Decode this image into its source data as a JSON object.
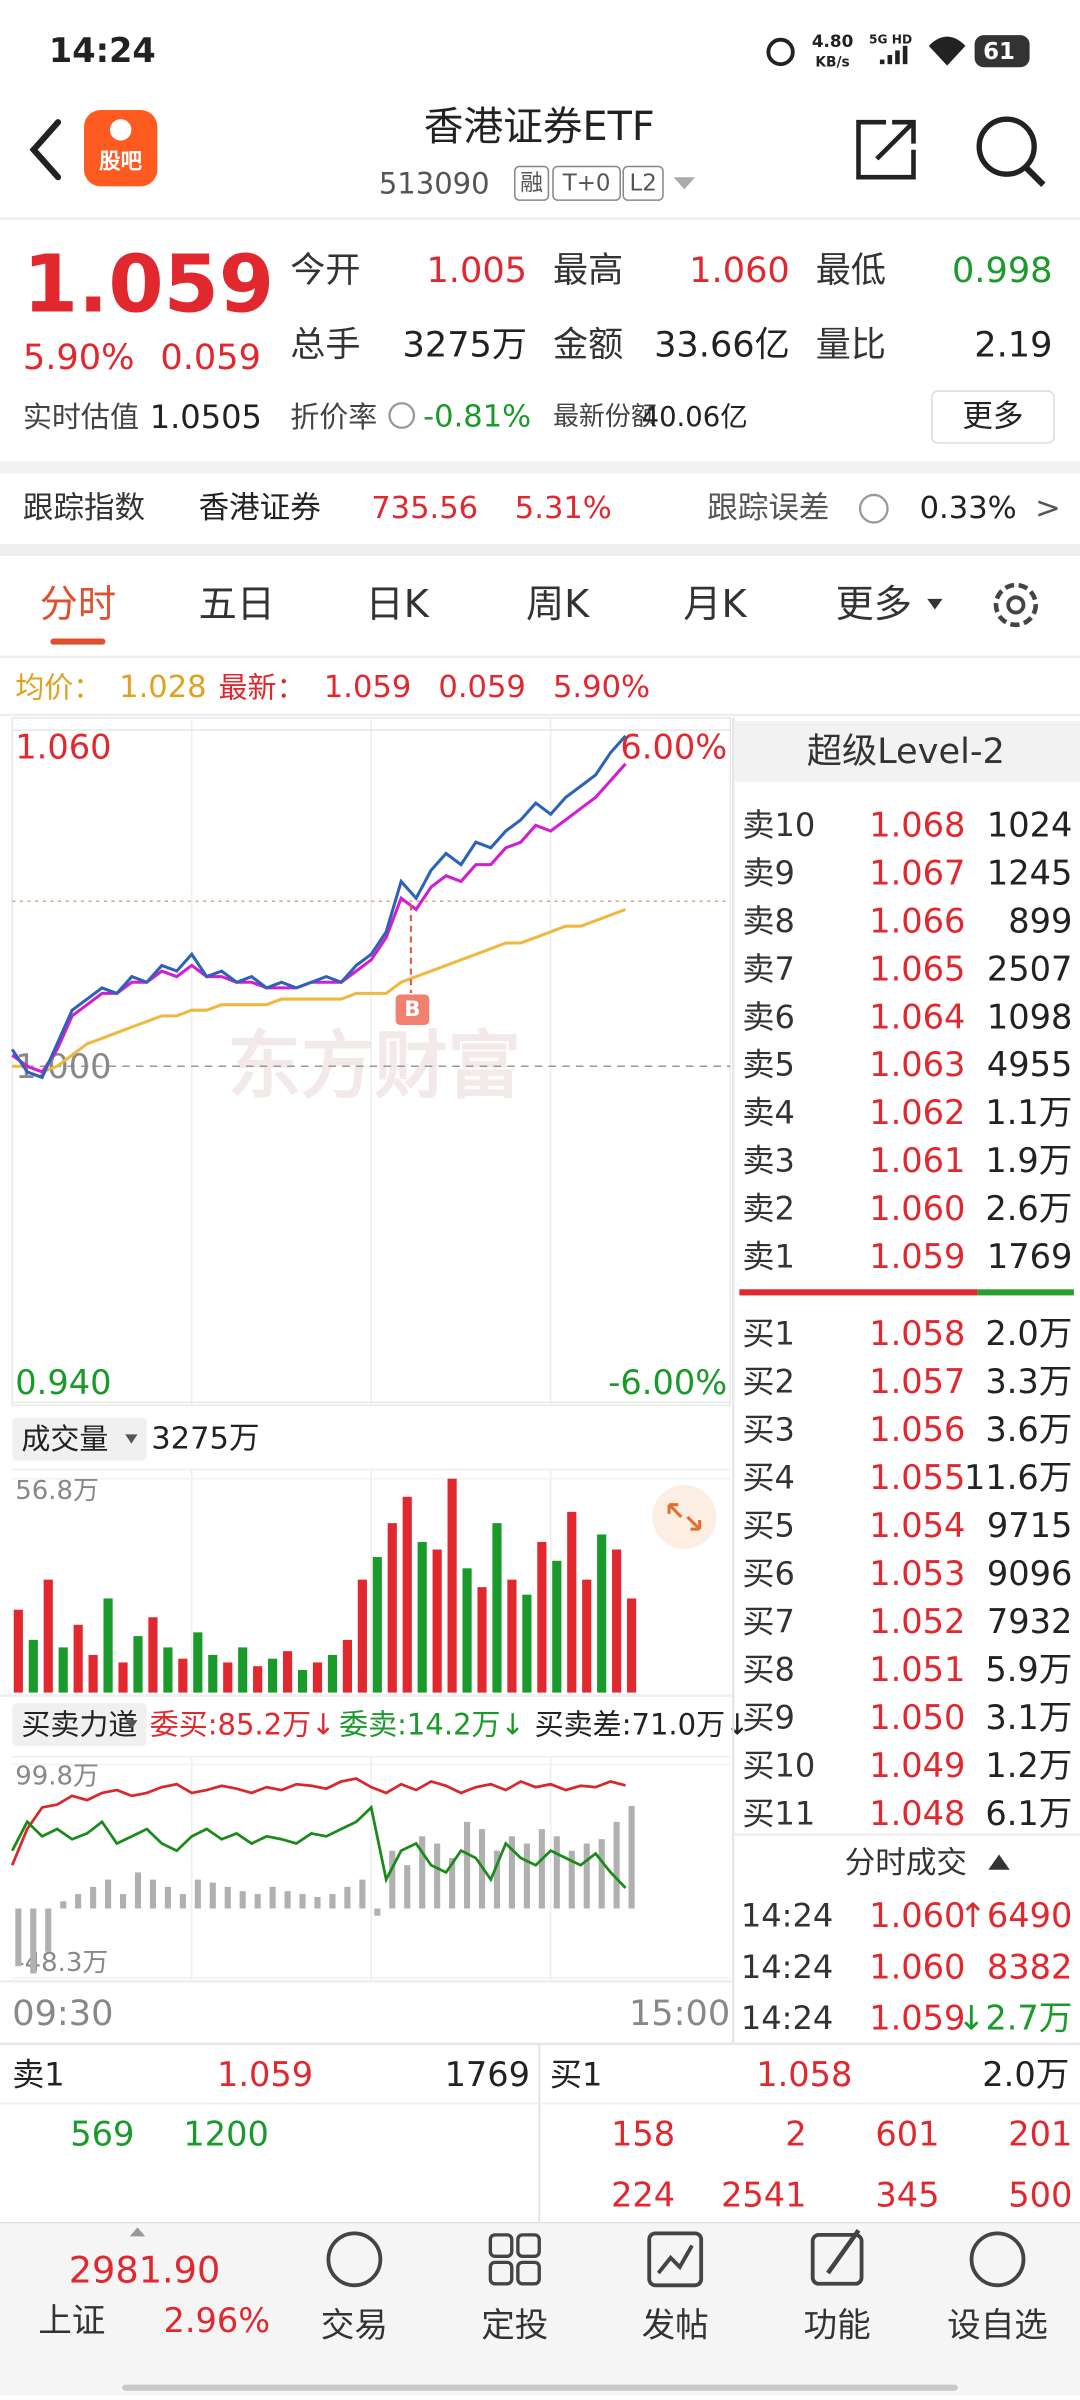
{
  "status": {
    "time": "14:24",
    "speed": "4.80",
    "speed_unit": "KB/s",
    "network": "5G HD",
    "battery": "61"
  },
  "header": {
    "app_badge": "股吧",
    "title": "香港证券ETF",
    "code": "513090",
    "tags": [
      "融",
      "T+0",
      "L2"
    ]
  },
  "quote": {
    "price": "1.059",
    "change_pct": "5.90%",
    "change": "0.059",
    "fields": [
      {
        "label": "今开",
        "value": "1.005"
      },
      {
        "label": "最高",
        "value": "1.060"
      },
      {
        "label": "最低",
        "value": "0.998"
      },
      {
        "label": "总手",
        "value": "3275万"
      },
      {
        "label": "金额",
        "value": "33.66亿"
      },
      {
        "label": "量比",
        "value": "2.19"
      }
    ],
    "estimate_label": "实时估值",
    "estimate": "1.0505",
    "discount_label": "折价率",
    "discount": "-0.81%",
    "shares_label": "最新份额",
    "shares": "40.06亿",
    "more": "更多"
  },
  "tracking": {
    "label": "跟踪指数",
    "index": "香港证券",
    "value": "735.56",
    "pct": "5.31%",
    "error_label": "跟踪误差",
    "error": "0.33%",
    "arrow": ">"
  },
  "tabs": [
    "分时",
    "五日",
    "日K",
    "周K",
    "月K",
    "更多"
  ],
  "summary": {
    "avg_label": "均价：",
    "avg": "1.028",
    "last_label": "最新：",
    "last": "1.059",
    "change": "0.059",
    "pct": "5.90%"
  },
  "chart_data": [
    {
      "type": "line",
      "ylim": [
        0.94,
        1.06
      ],
      "yticks": [
        {
          "value": 1.06,
          "label": "1.060"
        },
        {
          "value": 1.0,
          "label": "1.000"
        },
        {
          "value": 0.94,
          "label": "0.940"
        }
      ],
      "y2lim": [
        -6,
        6
      ],
      "y2ticks": [
        {
          "value": 6,
          "label": "6.00%"
        },
        {
          "value": -6,
          "label": "-6.00%"
        }
      ],
      "time_labels": [
        "09:30",
        "15:00"
      ],
      "watermark": "东方财富",
      "trade_marker": "B",
      "series": [
        {
          "color": "#2d62b8",
          "values": [
            1.003,
            0.999,
            0.998,
            1.004,
            1.01,
            1.012,
            1.014,
            1.013,
            1.016,
            1.015,
            1.018,
            1.017,
            1.02,
            1.016,
            1.017,
            1.015,
            1.016,
            1.014,
            1.015,
            1.014,
            1.015,
            1.016,
            1.015,
            1.018,
            1.02,
            1.024,
            1.033,
            1.03,
            1.035,
            1.038,
            1.036,
            1.04,
            1.039,
            1.042,
            1.044,
            1.047,
            1.045,
            1.048,
            1.05,
            1.052,
            1.056,
            1.059
          ]
        },
        {
          "color": "#d21ed2",
          "values": [
            1.002,
            1.0,
            0.999,
            1.003,
            1.009,
            1.011,
            1.013,
            1.013,
            1.015,
            1.015,
            1.017,
            1.016,
            1.018,
            1.016,
            1.016,
            1.015,
            1.015,
            1.014,
            1.014,
            1.014,
            1.015,
            1.015,
            1.015,
            1.017,
            1.019,
            1.023,
            1.03,
            1.028,
            1.032,
            1.034,
            1.033,
            1.036,
            1.036,
            1.039,
            1.04,
            1.043,
            1.042,
            1.044,
            1.046,
            1.048,
            1.051,
            1.054
          ]
        },
        {
          "color": "#f0b840",
          "values": [
            1.0,
            1.0,
            0.999,
            1.0,
            1.002,
            1.004,
            1.005,
            1.006,
            1.007,
            1.008,
            1.009,
            1.009,
            1.01,
            1.01,
            1.011,
            1.011,
            1.011,
            1.011,
            1.012,
            1.012,
            1.012,
            1.012,
            1.012,
            1.013,
            1.013,
            1.013,
            1.015,
            1.016,
            1.017,
            1.018,
            1.019,
            1.02,
            1.021,
            1.022,
            1.022,
            1.023,
            1.024,
            1.025,
            1.025,
            1.026,
            1.027,
            1.028
          ]
        }
      ]
    },
    {
      "type": "bar",
      "title": "成交量",
      "total": "3275万",
      "ylim": [
        0,
        56.8
      ],
      "yticks": [
        {
          "value": 56.8,
          "label": "56.8万"
        }
      ],
      "up_color": "#e0282e",
      "down_color": "#1a9a2a",
      "values": [
        22,
        14,
        30,
        12,
        18,
        10,
        25,
        8,
        15,
        20,
        12,
        9,
        16,
        10,
        8,
        12,
        7,
        9,
        11,
        6,
        8,
        10,
        14,
        30,
        36,
        45,
        52,
        40,
        38,
        56.8,
        33,
        28,
        45,
        30,
        26,
        40,
        35,
        48,
        30,
        42,
        38,
        25
      ],
      "up": [
        true,
        false,
        true,
        false,
        true,
        true,
        false,
        true,
        false,
        true,
        false,
        true,
        false,
        false,
        true,
        false,
        true,
        false,
        true,
        false,
        true,
        false,
        true,
        true,
        false,
        true,
        true,
        false,
        true,
        true,
        false,
        true,
        false,
        true,
        false,
        true,
        false,
        true,
        true,
        false,
        true,
        true
      ]
    },
    {
      "type": "line",
      "title": "买卖力道",
      "legend": [
        "委买:85.2万↓",
        "委卖:14.2万↓",
        "买卖差:71.0万↓"
      ],
      "ylim": [
        -48.3,
        99.8
      ],
      "yticks": [
        {
          "value": 99.8,
          "label": "99.8万"
        },
        {
          "value": -48.3,
          "label": "-48.3万"
        }
      ],
      "series": [
        {
          "type": "bar",
          "color": "#b0b0b0",
          "values": [
            -40,
            -45,
            -30,
            5,
            10,
            15,
            20,
            10,
            25,
            20,
            15,
            10,
            20,
            18,
            15,
            12,
            10,
            15,
            12,
            10,
            8,
            10,
            15,
            20,
            -5,
            40,
            30,
            50,
            45,
            35,
            60,
            55,
            40,
            50,
            45,
            55,
            50,
            40,
            45,
            48,
            60,
            71.0
          ]
        },
        {
          "color": "#d8282e",
          "values": [
            30,
            55,
            70,
            72,
            78,
            75,
            80,
            82,
            78,
            80,
            84,
            86,
            80,
            82,
            85,
            83,
            80,
            84,
            82,
            86,
            85,
            83,
            88,
            90,
            84,
            80,
            86,
            82,
            88,
            85,
            80,
            84,
            86,
            82,
            88,
            84,
            86,
            82,
            85,
            84,
            88,
            85.2
          ]
        },
        {
          "color": "#1a8a1a",
          "values": [
            40,
            60,
            50,
            55,
            48,
            52,
            60,
            45,
            50,
            55,
            45,
            40,
            50,
            55,
            48,
            52,
            45,
            50,
            48,
            45,
            52,
            50,
            55,
            60,
            70,
            20,
            40,
            45,
            30,
            25,
            40,
            35,
            20,
            45,
            35,
            30,
            40,
            35,
            30,
            38,
            25,
            14.2
          ]
        }
      ]
    }
  ],
  "level2": {
    "title": "超级Level-2",
    "sells": [
      {
        "label": "卖10",
        "price": "1.068",
        "volume": "1024"
      },
      {
        "label": "卖9",
        "price": "1.067",
        "volume": "1245"
      },
      {
        "label": "卖8",
        "price": "1.066",
        "volume": "899"
      },
      {
        "label": "卖7",
        "price": "1.065",
        "volume": "2507"
      },
      {
        "label": "卖6",
        "price": "1.064",
        "volume": "1098"
      },
      {
        "label": "卖5",
        "price": "1.063",
        "volume": "4955"
      },
      {
        "label": "卖4",
        "price": "1.062",
        "volume": "1.1万"
      },
      {
        "label": "卖3",
        "price": "1.061",
        "volume": "1.9万"
      },
      {
        "label": "卖2",
        "price": "1.060",
        "volume": "2.6万"
      },
      {
        "label": "卖1",
        "price": "1.059",
        "volume": "1769"
      }
    ],
    "buys": [
      {
        "label": "买1",
        "price": "1.058",
        "volume": "2.0万"
      },
      {
        "label": "买2",
        "price": "1.057",
        "volume": "3.3万"
      },
      {
        "label": "买3",
        "price": "1.056",
        "volume": "3.6万"
      },
      {
        "label": "买4",
        "price": "1.055",
        "volume": "11.6万"
      },
      {
        "label": "买5",
        "price": "1.054",
        "volume": "9715"
      },
      {
        "label": "买6",
        "price": "1.053",
        "volume": "9096"
      },
      {
        "label": "买7",
        "price": "1.052",
        "volume": "7932"
      },
      {
        "label": "买8",
        "price": "1.051",
        "volume": "5.9万"
      },
      {
        "label": "买9",
        "price": "1.050",
        "volume": "3.1万"
      },
      {
        "label": "买10",
        "price": "1.049",
        "volume": "1.2万"
      },
      {
        "label": "买11",
        "price": "1.048",
        "volume": "6.1万"
      }
    ],
    "trades_title": "分时成交",
    "trades": [
      {
        "time": "14:24",
        "price": "1.060",
        "volume": "↑6490"
      },
      {
        "time": "14:24",
        "price": "1.060",
        "volume": "8382"
      },
      {
        "time": "14:24",
        "price": "1.059",
        "volume": "↓2.7万"
      }
    ]
  },
  "level1": {
    "ask_label": "卖1",
    "ask_price": "1.059",
    "ask_volume": "1769",
    "bid_label": "买1",
    "bid_price": "1.058",
    "bid_volume": "2.0万",
    "ask_queue": [
      "569",
      "1200"
    ],
    "bid_queue": [
      [
        "158",
        "2",
        "601",
        "201"
      ],
      [
        "224",
        "2541",
        "345",
        "500"
      ]
    ]
  },
  "nav": {
    "index_value": "2981.90",
    "index_name": "上证",
    "index_pct": "2.96%",
    "items": [
      "交易",
      "定投",
      "发帖",
      "功能",
      "设自选"
    ]
  }
}
